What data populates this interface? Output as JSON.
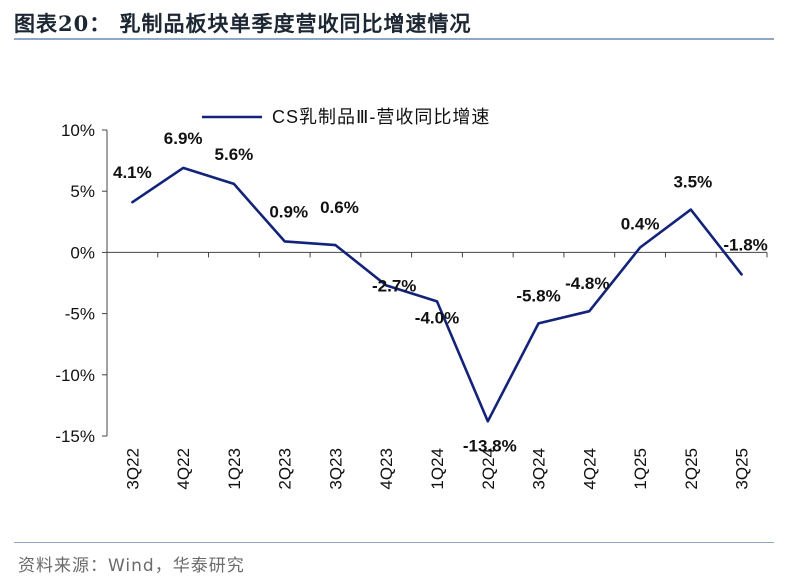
{
  "header": {
    "title": "图表20：  乳制品板块单季度营收同比增速情况"
  },
  "footer": {
    "source": "资料来源：Wind，华泰研究"
  },
  "chart_data": {
    "type": "line",
    "title": "",
    "xlabel": "",
    "ylabel": "",
    "categories": [
      "3Q22",
      "4Q22",
      "1Q23",
      "2Q23",
      "3Q23",
      "4Q23",
      "1Q24",
      "2Q24",
      "3Q24",
      "4Q24",
      "1Q25",
      "2Q25",
      "3Q25"
    ],
    "series": [
      {
        "name": "CS乳制品Ⅲ-营收同比增速",
        "values": [
          4.1,
          6.9,
          5.6,
          0.9,
          0.6,
          -2.7,
          -4.0,
          -13.8,
          -5.8,
          -4.8,
          0.4,
          3.5,
          -1.8
        ],
        "labels": [
          "4.1%",
          "6.9%",
          "5.6%",
          "0.9%",
          "0.6%",
          "-2.7%",
          "-4.0%",
          "-13.8%",
          "-5.8%",
          "-4.8%",
          "0.4%",
          "3.5%",
          "-1.8%"
        ],
        "color": "#13237a"
      }
    ],
    "ylim": [
      -15,
      10
    ],
    "yticks": [
      10,
      5,
      0,
      -5,
      -10,
      -15
    ],
    "ytick_labels": [
      "10%",
      "5%",
      "0%",
      "-5%",
      "-10%",
      "-15%"
    ],
    "legend": "top-center",
    "grid": false
  }
}
